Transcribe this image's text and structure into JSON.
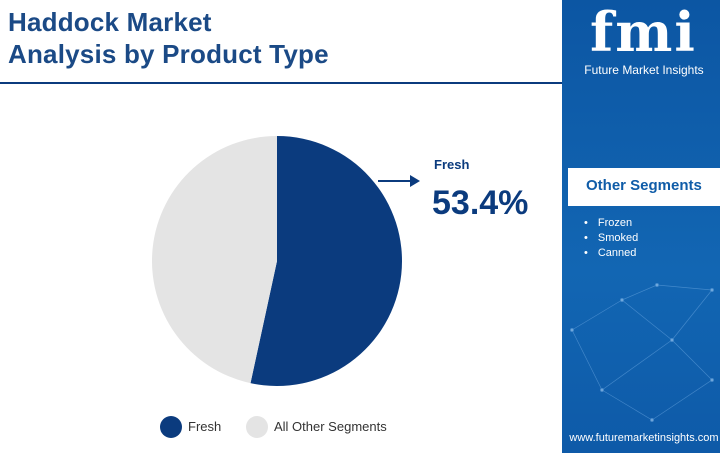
{
  "header": {
    "title_line1": "Haddock Market",
    "title_line2": "Analysis by Product Type"
  },
  "brand": {
    "logo": "fmi",
    "name": "Future Market Insights",
    "website": "www.futuremarketinsights.com"
  },
  "sidebar": {
    "other_segments_title": "Other Segments",
    "items": [
      "Frozen",
      "Smoked",
      "Canned"
    ]
  },
  "callout": {
    "label": "Fresh",
    "value": "53.4%"
  },
  "colors": {
    "primary": "#0b3b7e",
    "secondary": "#e4e4e4",
    "sidebar": "#0f5ca8"
  },
  "chart_data": {
    "type": "pie",
    "title": "Haddock Market Analysis by Product Type",
    "categories": [
      "Fresh",
      "All Other Segments"
    ],
    "values": [
      53.4,
      46.6
    ],
    "colors": [
      "#0b3b7e",
      "#e4e4e4"
    ],
    "legend_position": "bottom",
    "legend": [
      "Fresh",
      "All Other Segments"
    ]
  }
}
